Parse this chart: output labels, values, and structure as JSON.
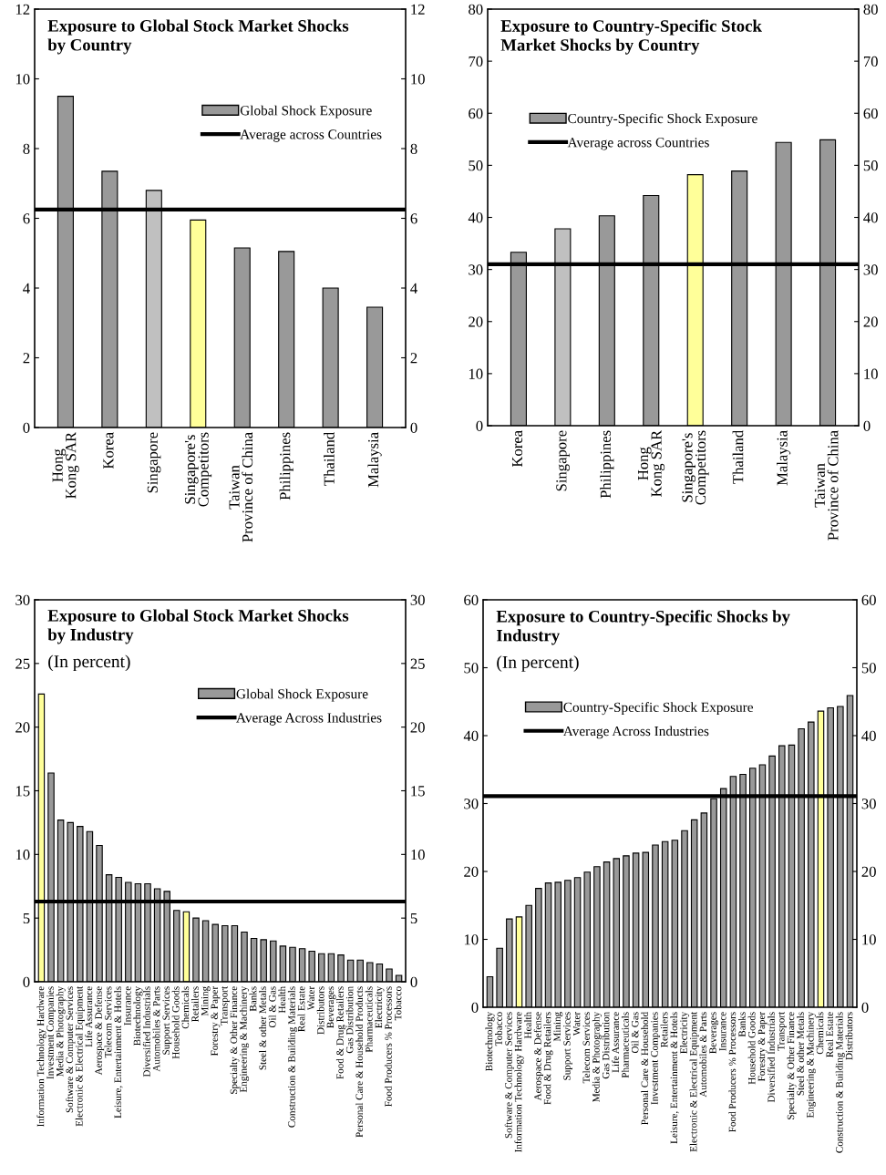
{
  "chart_data": [
    {
      "type": "bar",
      "title": "Exposure to Global Stock Market Shocks\nby Country",
      "categories": [
        "Hong\nKong SAR",
        "Korea",
        "Singapore",
        "Singapore's\nCompetitors",
        "Taiwan\nProvince of China",
        "Philippines",
        "Thailand",
        "Malaysia"
      ],
      "series": [
        {
          "name": "Global Shock Exposure",
          "color": "#999999",
          "colors": [
            "#999999",
            "#999999",
            "#c0c0c0",
            "#ffff99",
            "#999999",
            "#999999",
            "#999999",
            "#999999"
          ],
          "values": [
            9.5,
            7.35,
            6.8,
            5.95,
            5.15,
            5.05,
            4.0,
            3.45
          ]
        }
      ],
      "ref_lines": [
        {
          "axis": "y",
          "value": 6.25,
          "label": "Average across Countries",
          "color": "#000000"
        }
      ],
      "ylim": [
        0,
        12
      ],
      "yticks": [
        0,
        2,
        4,
        6,
        8,
        10,
        12
      ],
      "y2lim": [
        0,
        12
      ],
      "y2ticks": [
        0,
        2,
        4,
        6,
        8,
        10,
        12
      ],
      "legend": "top right",
      "grid": false
    },
    {
      "type": "bar",
      "title": "Exposure to Country-Specific Stock\nMarket Shocks by Country",
      "categories": [
        "Korea",
        "Singapore",
        "Philippines",
        "Hong\nKong SAR",
        "Singapore's\nCompetitors",
        "Thailand",
        "Malaysia",
        "Taiwan\nProvince of China"
      ],
      "series": [
        {
          "name": "Country-Specific Shock Exposure",
          "color": "#999999",
          "colors": [
            "#999999",
            "#c0c0c0",
            "#999999",
            "#999999",
            "#ffff99",
            "#999999",
            "#999999",
            "#999999"
          ],
          "values": [
            33.3,
            37.8,
            40.3,
            44.2,
            48.2,
            48.9,
            54.4,
            54.9
          ]
        }
      ],
      "ref_lines": [
        {
          "axis": "y",
          "value": 31,
          "label": "Average across Countries",
          "color": "#000000"
        }
      ],
      "ylim": [
        0,
        80
      ],
      "yticks": [
        0,
        10,
        20,
        30,
        40,
        50,
        60,
        70,
        80
      ],
      "y2lim": [
        0,
        80
      ],
      "y2ticks": [
        0,
        10,
        20,
        30,
        40,
        50,
        60,
        70,
        80
      ],
      "legend": "top left",
      "grid": false
    },
    {
      "type": "bar",
      "title": "Exposure to Global Stock Market Shocks\nby Industry",
      "subtitle": "(In percent)",
      "categories": [
        "Information Technology Hardware",
        "Investment Companies",
        "Media & Photography",
        "Software & Computer Services",
        "Electronic & Electrical Equipment",
        "Life Assurance",
        "Aerospace & Defense",
        "Telecom Services",
        "Leisure, Entertainment & Hotels",
        "Insurance",
        "Biotechnology",
        "Diversified Industrials",
        "Automobiles & Parts",
        "Support Services",
        "Household Goods",
        "Chemicals",
        "Retailers",
        "Mining",
        "Forestry & Paper",
        "Transport",
        "Specialty & Other Finance",
        "Engineering & Machinery",
        "Banks",
        "Steel & other Metals",
        "Oil & Gas",
        "Health",
        "Construction & Building Materials",
        "Real Estate",
        "Water",
        "Distributors",
        "Beverages",
        "Food & Drug Retailers",
        "Gas Distribution",
        "Personal Care & Household Products",
        "Pharmaceuticals",
        "Electricity",
        "Food Producers % Processors",
        "Tobacco"
      ],
      "series": [
        {
          "name": "Global Shock Exposure",
          "color": "#999999",
          "colors": [
            "#ffff99",
            "#999999",
            "#999999",
            "#999999",
            "#999999",
            "#999999",
            "#999999",
            "#999999",
            "#999999",
            "#999999",
            "#999999",
            "#999999",
            "#999999",
            "#999999",
            "#999999",
            "#ffff99",
            "#999999",
            "#999999",
            "#999999",
            "#999999",
            "#999999",
            "#999999",
            "#999999",
            "#999999",
            "#999999",
            "#999999",
            "#999999",
            "#999999",
            "#999999",
            "#999999",
            "#999999",
            "#999999",
            "#999999",
            "#999999",
            "#999999",
            "#999999",
            "#999999",
            "#999999"
          ],
          "values": [
            22.6,
            16.4,
            12.7,
            12.5,
            12.2,
            11.8,
            10.7,
            8.4,
            8.2,
            7.8,
            7.7,
            7.7,
            7.3,
            7.1,
            5.6,
            5.5,
            5.0,
            4.8,
            4.5,
            4.4,
            4.4,
            3.9,
            3.4,
            3.3,
            3.2,
            2.8,
            2.7,
            2.6,
            2.4,
            2.2,
            2.2,
            2.1,
            1.7,
            1.7,
            1.5,
            1.4,
            1.0,
            0.5
          ]
        }
      ],
      "ref_lines": [
        {
          "axis": "y",
          "value": 6.3,
          "label": "Average Across Industries",
          "color": "#000000"
        }
      ],
      "ylim": [
        0,
        30
      ],
      "yticks": [
        0,
        5,
        10,
        15,
        20,
        25,
        30
      ],
      "y2lim": [
        0,
        30
      ],
      "y2ticks": [
        0,
        5,
        10,
        15,
        20,
        25,
        30
      ],
      "legend": "top right",
      "grid": false
    },
    {
      "type": "bar",
      "title": "Exposure to Country-Specific Shocks by\nIndustry",
      "subtitle": "(In percent)",
      "categories": [
        "Biotechnology",
        "Tobacco",
        "Software & Computer Services",
        "Information Technology Hardware",
        "Health",
        "Aerospace & Defense",
        "Food & Drug Retailers",
        "Mining",
        "Support Services",
        "Water",
        "Telecom Services",
        "Media & Photography",
        "Gas Distribution",
        "Life Assurance",
        "Pharmaceuticals",
        "Oil & Gas",
        "Personal Care & Household",
        "Investment Companies",
        "Retailers",
        "Leisure, Entertainment & Hotels",
        "Electricity",
        "Electronic & Electrical Equipment",
        "Automobiles & Parts",
        "Beverages",
        "Insurance",
        "Food Producers % Processors",
        "Banks",
        "Household Goods",
        "Forestry & Paper",
        "Diversified Industrials",
        "Transport",
        "Specialty & Other Finance",
        "Steel & other Metals",
        "Engineering & Machinery",
        "Chemicals",
        "Real Estate",
        "Construction & Building Materials",
        "Distributors"
      ],
      "series": [
        {
          "name": "Country-Specific Shock Exposure",
          "color": "#999999",
          "colors": [
            "#999999",
            "#999999",
            "#999999",
            "#ffff99",
            "#999999",
            "#999999",
            "#999999",
            "#999999",
            "#999999",
            "#999999",
            "#999999",
            "#999999",
            "#999999",
            "#999999",
            "#999999",
            "#999999",
            "#999999",
            "#999999",
            "#999999",
            "#999999",
            "#999999",
            "#999999",
            "#999999",
            "#999999",
            "#999999",
            "#999999",
            "#999999",
            "#999999",
            "#999999",
            "#999999",
            "#999999",
            "#999999",
            "#999999",
            "#999999",
            "#ffff99",
            "#999999",
            "#999999",
            "#999999"
          ],
          "values": [
            4.5,
            8.7,
            13.0,
            13.3,
            15.0,
            17.5,
            18.3,
            18.4,
            18.7,
            19.1,
            19.9,
            20.7,
            21.4,
            21.9,
            22.3,
            22.7,
            22.8,
            23.9,
            24.4,
            24.6,
            26.0,
            27.6,
            28.6,
            30.7,
            32.2,
            34.0,
            34.3,
            35.2,
            35.7,
            37.0,
            38.5,
            38.6,
            41.0,
            42.0,
            43.6,
            44.1,
            44.3,
            45.9
          ]
        }
      ],
      "ref_lines": [
        {
          "axis": "y",
          "value": 31.1,
          "label": "Average Across Industries",
          "color": "#000000"
        }
      ],
      "ylim": [
        0,
        60
      ],
      "yticks": [
        0,
        10,
        20,
        30,
        40,
        50,
        60
      ],
      "y2lim": [
        0,
        60
      ],
      "y2ticks": [
        0,
        10,
        20,
        30,
        40,
        50,
        60
      ],
      "legend": "top left",
      "grid": false
    }
  ]
}
